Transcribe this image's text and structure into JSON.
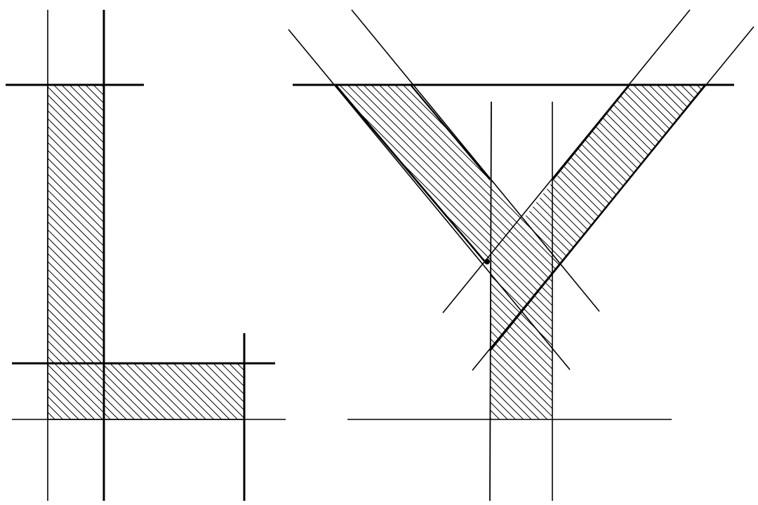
{
  "figure": {
    "letters": [
      "L",
      "Y"
    ],
    "ink_color": "#000000",
    "background_color": "#ffffff",
    "hatch_style": "diagonal"
  }
}
